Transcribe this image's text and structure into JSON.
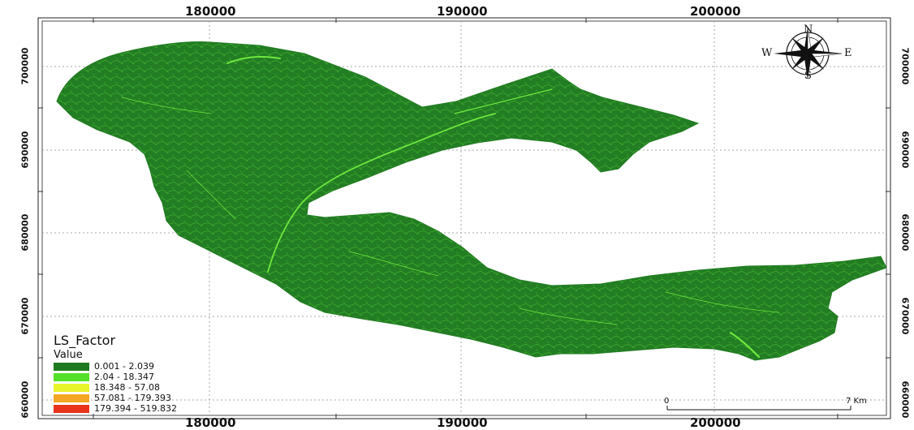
{
  "top_axis": {
    "labels": [
      "180000",
      "190000",
      "200000"
    ]
  },
  "bottom_axis": {
    "labels": [
      "180000",
      "190000",
      "200000"
    ]
  },
  "left_axis": {
    "labels": [
      "700000",
      "690000",
      "680000",
      "670000",
      "660000"
    ]
  },
  "right_axis": {
    "labels": [
      "700000",
      "690000",
      "680000",
      "670000",
      "660000"
    ]
  },
  "compass": {
    "north": "N",
    "south": "S",
    "east": "E",
    "west": "W"
  },
  "legend": {
    "title": "LS_Factor",
    "subtitle": "Value",
    "classes": [
      {
        "label": "0.001 - 2.039",
        "color": "#1f7a1f"
      },
      {
        "label": "2.04 - 18.347",
        "color": "#55e02a"
      },
      {
        "label": "18.348 - 57.08",
        "color": "#e8f52a"
      },
      {
        "label": "57.081 - 179.393",
        "color": "#f5a623"
      },
      {
        "label": "179.394 - 519.832",
        "color": "#e8341c"
      }
    ]
  },
  "scale_bar": {
    "start": "0",
    "end": "7 Km"
  },
  "colors": {
    "region_fill": "#237d23",
    "region_highlight": "#5fe03a",
    "grid": "#a0a0a0"
  }
}
